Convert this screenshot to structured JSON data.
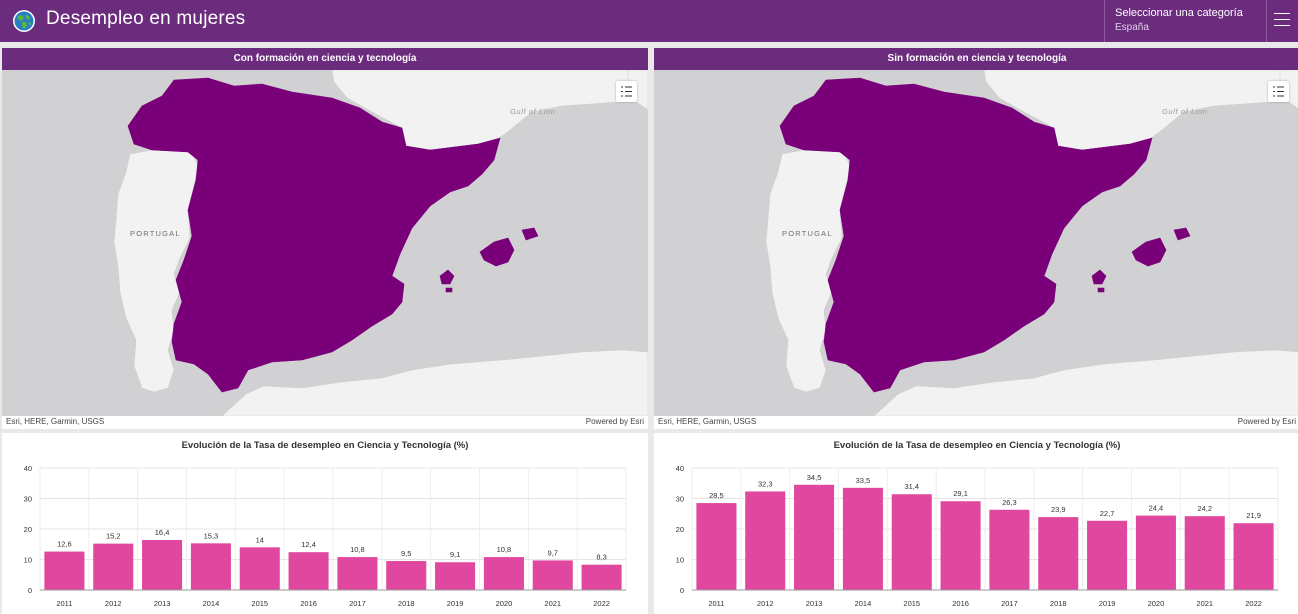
{
  "header": {
    "title": "Desempleo en mujeres",
    "category_label": "Seleccionar una categoría",
    "category_value": "España",
    "logo_icon": "globe-icon",
    "menu_icon": "hamburger-menu-icon",
    "color": "#6b2c7e"
  },
  "maps": [
    {
      "title": "Con formación en ciencia y tecnología",
      "label_portugal": "PORTUGAL",
      "label_gulf": "Gulf of Lion",
      "attribution_left": "Esri, HERE, Garmin, USGS",
      "attribution_right": "Powered by Esri",
      "legend_icon": "legend-list-icon",
      "fill_color": "#7a007a"
    },
    {
      "title": "Sin formación en ciencia y tecnología",
      "label_portugal": "PORTUGAL",
      "label_gulf": "Gulf of Lion",
      "attribution_left": "Esri, HERE, Garmin, USGS",
      "attribution_right": "Powered by Esri",
      "legend_icon": "legend-list-icon",
      "fill_color": "#7a007a"
    }
  ],
  "chart_data": [
    {
      "type": "bar",
      "title": "Evolución de la Tasa de desempleo en Ciencia y Tecnología (%)",
      "categories": [
        "2011",
        "2012",
        "2013",
        "2014",
        "2015",
        "2016",
        "2017",
        "2018",
        "2019",
        "2020",
        "2021",
        "2022"
      ],
      "values": [
        12.6,
        15.2,
        16.4,
        15.3,
        14,
        12.4,
        10.8,
        9.5,
        9.1,
        10.8,
        9.7,
        8.3
      ],
      "labels": [
        "12,6",
        "15,2",
        "16,4",
        "15,3",
        "14",
        "12,4",
        "10,8",
        "9,5",
        "9,1",
        "10,8",
        "9,7",
        "8,3"
      ],
      "ylim": [
        0,
        40
      ],
      "yticks": [
        "0",
        "10",
        "20",
        "30",
        "40"
      ],
      "bar_color": "#e0479e",
      "grid": true
    },
    {
      "type": "bar",
      "title": "Evolución de la Tasa de desempleo en Ciencia y Tecnología (%)",
      "categories": [
        "2011",
        "2012",
        "2013",
        "2014",
        "2015",
        "2016",
        "2017",
        "2018",
        "2019",
        "2020",
        "2021",
        "2022"
      ],
      "values": [
        28.5,
        32.3,
        34.5,
        33.5,
        31.4,
        29.1,
        26.3,
        23.9,
        22.7,
        24.4,
        24.2,
        21.9
      ],
      "labels": [
        "28,5",
        "32,3",
        "34,5",
        "33,5",
        "31,4",
        "29,1",
        "26,3",
        "23,9",
        "22,7",
        "24,4",
        "24,2",
        "21,9"
      ],
      "ylim": [
        0,
        40
      ],
      "yticks": [
        "0",
        "10",
        "20",
        "30",
        "40"
      ],
      "bar_color": "#e0479e",
      "grid": true
    }
  ]
}
